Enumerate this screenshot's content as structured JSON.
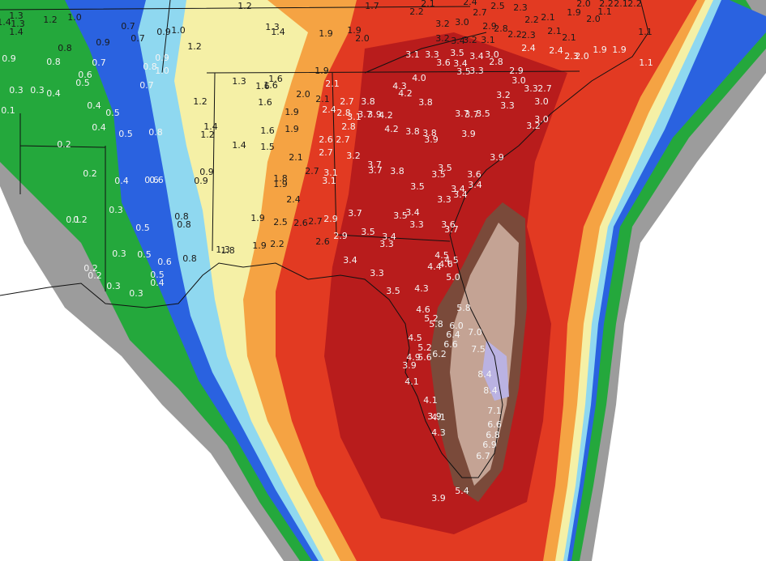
{
  "labels": [
    "1.3",
    "1.4",
    "1.3",
    "1.2",
    "1.0",
    "1.4",
    "0.7",
    "0.9",
    "0.7",
    "0.9",
    "1.0",
    "1.2",
    "1.2",
    "1.3",
    "1.4",
    "1.9",
    "1.9",
    "2.0",
    "1.7",
    "2.2",
    "2.1",
    "2.4",
    "2.7",
    "3.0",
    "3.2",
    "3.2",
    "3.4",
    "3.2",
    "3.1",
    "2.9",
    "2.8",
    "2.5",
    "2.3",
    "2.2",
    "2.1",
    "1.9",
    "2.0",
    "2.0",
    "2.2",
    "2.1",
    "2.2",
    "2.2",
    "2.3",
    "2.1",
    "2.1",
    "2.4",
    "2.4",
    "2.3",
    "2.0",
    "1.9",
    "1.9",
    "1.1",
    "1.1",
    "1.1",
    "0.9",
    "0.8",
    "0.7",
    "0.6",
    "0.5",
    "0.8",
    "1.0",
    "0.9",
    "0.7",
    "0.3",
    "0.3",
    "0.4",
    "0.4",
    "0.1",
    "0.5",
    "0.4",
    "0.5",
    "0.8",
    "1.2",
    "1.4",
    "1.2",
    "1.3",
    "1.6",
    "1.6",
    "1.6",
    "1.6",
    "1.9",
    "2.0",
    "1.9",
    "2.1",
    "2.1",
    "2.4",
    "2.8",
    "2.7",
    "3.8",
    "2.8",
    "3.1",
    "3.7",
    "3.9",
    "4.2",
    "4.2",
    "4.3",
    "4.2",
    "4.0",
    "3.8",
    "3.1",
    "3.3",
    "3.6",
    "3.4",
    "3.5",
    "3.3",
    "3.5",
    "3.4",
    "3.0",
    "2.8",
    "2.9",
    "3.0",
    "3.3",
    "2.7",
    "3.0",
    "3.0",
    "3.2",
    "3.2",
    "3.3",
    "3.7",
    "3.7",
    "3.5",
    "3.9",
    "3.9",
    "3.6",
    "3.4",
    "3.4",
    "3.4",
    "3.5",
    "3.5",
    "3.5",
    "3.8",
    "3.7",
    "3.7",
    "3.2",
    "3.8",
    "3.8",
    "3.9",
    "3.3",
    "1.6",
    "1.9",
    "1.4",
    "1.5",
    "2.1",
    "2.6",
    "2.7",
    "3.1",
    "3.1",
    "2.7",
    "1.8",
    "1.9",
    "2.4",
    "2.7",
    "0.8",
    "0.2",
    "0.2",
    "0.4",
    "0.6",
    "0.6",
    "0.9",
    "0.9",
    "0.3",
    "0.1",
    "0.2",
    "0.8",
    "0.8",
    "0.5",
    "1.9",
    "2.5",
    "2.6",
    "2.7",
    "2.9",
    "3.7",
    "3.5",
    "3.4",
    "3.3",
    "3.5",
    "3.4",
    "3.3",
    "2.9",
    "2.6",
    "1.9",
    "2.2",
    "1.3",
    "1.8",
    "3.6",
    "3.7",
    "0.3",
    "0.5",
    "0.6",
    "0.8",
    "0.2",
    "0.2",
    "0.3",
    "0.3",
    "0.5",
    "0.4",
    "3.4",
    "3.3",
    "3.5",
    "4.3",
    "4.5",
    "4.5",
    "4.4",
    "4.6",
    "5.0",
    "4.6",
    "5.2",
    "5.8",
    "5.8",
    "6.0",
    "6.4",
    "7.0",
    "4.5",
    "5.2",
    "6.6",
    "6.2",
    "7.5",
    "4.9",
    "5.6",
    "3.9",
    "4.1",
    "8.4",
    "8.4",
    "4.1",
    "3.9",
    "4.1",
    "7.1",
    "6.6",
    "6.8",
    "6.9",
    "6.7",
    "4.3",
    "5.4",
    "3.9"
  ]
}
